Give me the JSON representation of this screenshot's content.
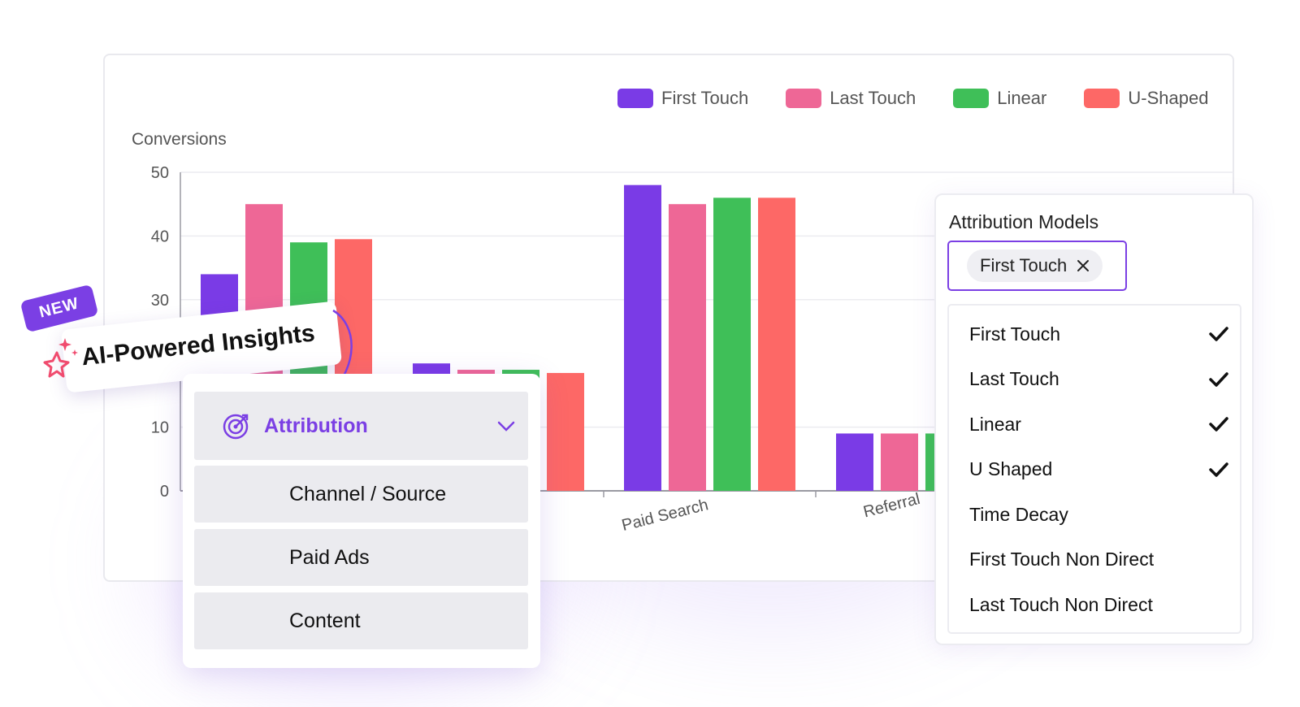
{
  "colors": {
    "first_touch": "#7a3be6",
    "last_touch": "#ee6796",
    "linear": "#3fbf58",
    "u_shaped": "#fd6866",
    "accent": "#7b3fe4"
  },
  "chart_data": {
    "type": "bar",
    "ylabel": "Conversions",
    "ylim": [
      0,
      50
    ],
    "yticks": [
      "0",
      "10",
      "30",
      "40",
      "50"
    ],
    "categories": [
      "",
      "",
      "Paid Search",
      "Referral"
    ],
    "series": [
      {
        "name": "First Touch",
        "color": "#7a3be6",
        "values": [
          34,
          20,
          48,
          9
        ]
      },
      {
        "name": "Last Touch",
        "color": "#ee6796",
        "values": [
          45,
          19,
          45,
          9
        ]
      },
      {
        "name": "Linear",
        "color": "#3fbf58",
        "values": [
          39,
          19,
          46,
          9
        ]
      },
      {
        "name": "U-Shaped",
        "color": "#fd6866",
        "values": [
          39.5,
          18.5,
          46,
          9
        ]
      }
    ],
    "legend": "top-right",
    "grid": true
  },
  "legend": {
    "items": [
      "First Touch",
      "Last Touch",
      "Linear",
      "U-Shaped"
    ]
  },
  "badge": {
    "new_label": "NEW",
    "title": "AI-Powered Insights"
  },
  "menu": {
    "header_label": "Attribution",
    "header_icon": "target-icon",
    "items": [
      "Channel / Source",
      "Paid Ads",
      "Content"
    ]
  },
  "models": {
    "title": "Attribution Models",
    "selected_chip": "First Touch",
    "options": [
      {
        "label": "First Touch",
        "checked": true
      },
      {
        "label": "Last Touch",
        "checked": true
      },
      {
        "label": "Linear",
        "checked": true
      },
      {
        "label": "U Shaped",
        "checked": true
      },
      {
        "label": "Time Decay",
        "checked": false
      },
      {
        "label": "First Touch Non Direct",
        "checked": false
      },
      {
        "label": "Last Touch Non Direct",
        "checked": false
      }
    ]
  }
}
